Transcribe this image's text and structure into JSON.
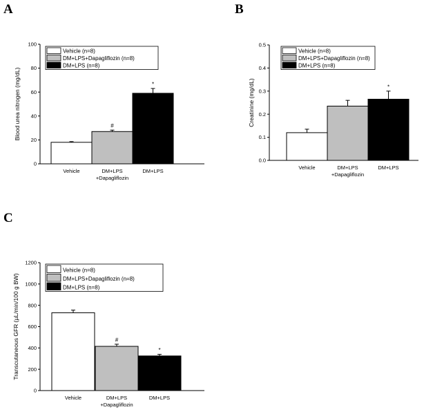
{
  "chart_data": [
    {
      "panel": "A",
      "type": "bar",
      "categories": [
        "Vehicle",
        "DM+LPS\n+Dapagliflozin",
        "DM+LPS"
      ],
      "values": [
        18,
        27,
        59
      ],
      "errors": [
        0.6,
        1.2,
        4
      ],
      "annotations": [
        "",
        "#",
        "*"
      ],
      "ylabel": "Blood urea nitrogen (mg/dL)",
      "ylim": [
        0,
        100
      ],
      "yticks": [
        "0",
        "20",
        "40",
        "60",
        "80",
        "100"
      ],
      "legend": [
        "Vehicle (n=8)",
        "DM+LPS+Dapagliflozin (n=8)",
        "DM+LPS (n=8)"
      ],
      "colors": [
        "#ffffff",
        "#bfbfbf",
        "#000000"
      ]
    },
    {
      "panel": "B",
      "type": "bar",
      "categories": [
        "Vehicle",
        "DM+LPS\n+Dapagliflozin",
        "DM+LPS"
      ],
      "values": [
        0.12,
        0.235,
        0.265
      ],
      "errors": [
        0.015,
        0.025,
        0.035
      ],
      "annotations": [
        "",
        "",
        "*"
      ],
      "ylabel": "Creatinine (mg/dL)",
      "ylim": [
        0,
        0.5
      ],
      "yticks": [
        "0.0",
        "0.1",
        "0.2",
        "0.3",
        "0.4",
        "0.5"
      ],
      "legend": [
        "Vehicle (n=8)",
        "DM+LPS+Dapagliflozin (n=8)",
        "DM+LPS (n=8)"
      ],
      "colors": [
        "#ffffff",
        "#bfbfbf",
        "#000000"
      ]
    },
    {
      "panel": "C",
      "type": "bar",
      "categories": [
        "Vehicle",
        "DM+LPS\n+Dapagliflozin",
        "DM+LPS"
      ],
      "values": [
        730,
        415,
        325
      ],
      "errors": [
        25,
        20,
        15
      ],
      "annotations": [
        "",
        "#",
        "*"
      ],
      "ylabel": "Transcutaneous GFR (µL/min/100 g BW)",
      "ylim": [
        0,
        1200
      ],
      "yticks": [
        "0",
        "200",
        "400",
        "600",
        "800",
        "1000",
        "1200"
      ],
      "legend": [
        "Vehicle (n=8)",
        "DM+LPS+Dapagliflozin (n=8)",
        "DM+LPS (n=8)"
      ],
      "colors": [
        "#ffffff",
        "#bfbfbf",
        "#000000"
      ]
    }
  ]
}
